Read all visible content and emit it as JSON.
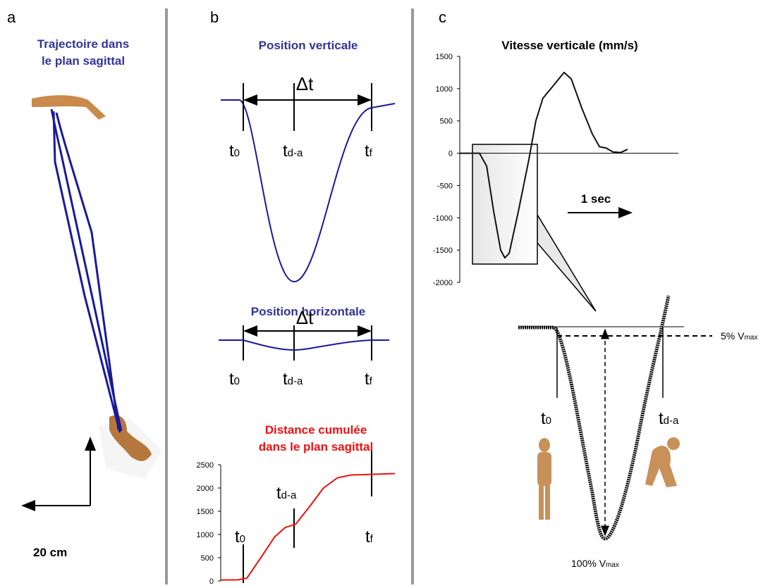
{
  "panel_labels": [
    "a",
    "b",
    "c"
  ],
  "panel_a": {
    "title": [
      "Trajectoire dans",
      "le plan sagittal"
    ],
    "scale": "20 cm"
  },
  "panel_b": {
    "vertical_title": "Position verticale",
    "horizontal_title": "Position horizontale",
    "delta": "Δt",
    "t0": {
      "base": "t",
      "sub": "0"
    },
    "tda": {
      "base": "t",
      "sub": "d-a"
    },
    "tf": {
      "base": "t",
      "sub": "f"
    }
  },
  "panel_c": {
    "time_scale": "1 sec",
    "threshold": {
      "base": "5% V",
      "sub": "max"
    },
    "peak": {
      "base": "100% V",
      "sub": "max"
    }
  },
  "chart_data": [
    {
      "type": "line",
      "title": [
        "Distance cumulée",
        "dans le plan sagittal"
      ],
      "color": "#ee1111",
      "x": [
        0,
        10,
        15,
        23,
        31,
        37,
        43,
        51,
        59,
        67,
        75,
        100
      ],
      "values": [
        20,
        25,
        60,
        500,
        950,
        1150,
        1220,
        1600,
        2000,
        2220,
        2280,
        2310
      ],
      "xlim": [
        0,
        100
      ],
      "ylim": [
        0,
        2500
      ],
      "yticks": [
        0,
        500,
        1000,
        1500,
        2000,
        2500
      ]
    },
    {
      "type": "line",
      "title": "Vitesse verticale (mm/s)",
      "color": "#111111",
      "x": [
        0,
        9,
        12.3,
        15.5,
        18.7,
        20.6,
        22.6,
        26.8,
        31.6,
        34.8,
        38,
        42.9,
        47.7,
        51,
        55.8,
        60.6,
        63.9,
        67,
        70,
        73.5,
        76.8
      ],
      "values": [
        0,
        0,
        -200,
        -900,
        -1500,
        -1620,
        -1550,
        -900,
        -100,
        500,
        850,
        1050,
        1250,
        1150,
        700,
        300,
        100,
        80,
        20,
        10,
        60
      ],
      "xlim": [
        0,
        100
      ],
      "ylim": [
        -2000,
        1500
      ],
      "yticks": [
        -2000,
        -1500,
        -1000,
        -500,
        0,
        500,
        1000,
        1500
      ]
    }
  ]
}
